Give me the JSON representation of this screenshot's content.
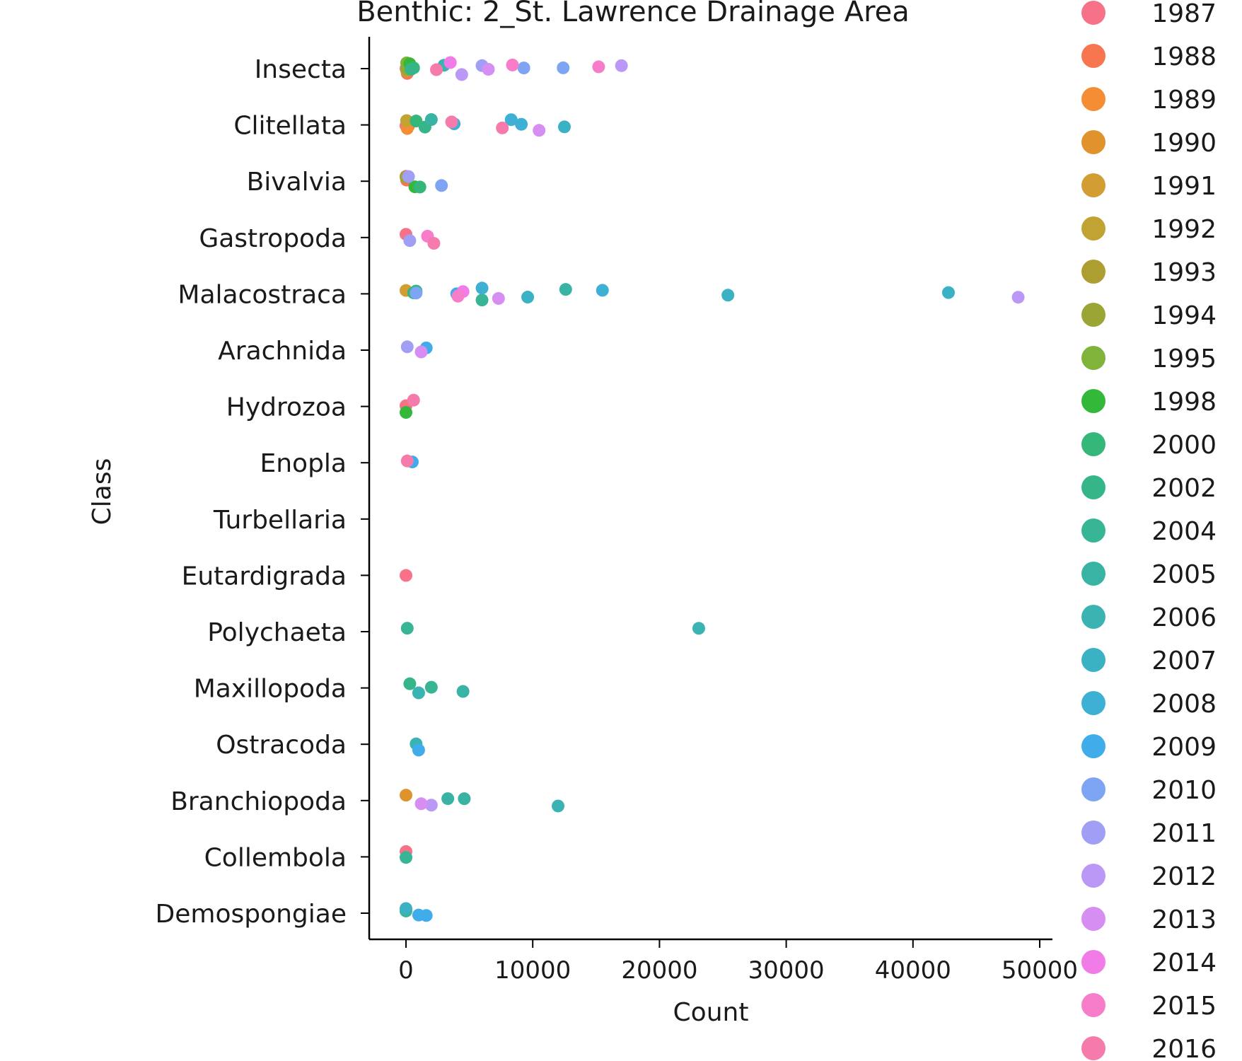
{
  "chart_data": {
    "type": "scatter",
    "title": "Benthic: 2_St. Lawrence Drainage Area",
    "xlabel": "Count",
    "ylabel": "Class",
    "xlim": [
      -2800,
      51000
    ],
    "xticks": [
      0,
      10000,
      20000,
      30000,
      40000,
      50000
    ],
    "xtick_labels": [
      "0",
      "10000",
      "20000",
      "30000",
      "40000",
      "50000"
    ],
    "categories": [
      "Insecta",
      "Clitellata",
      "Bivalvia",
      "Gastropoda",
      "Malacostraca",
      "Arachnida",
      "Hydrozoa",
      "Enopla",
      "Turbellaria",
      "Eutardigrada",
      "Polychaeta",
      "Maxillopoda",
      "Ostracoda",
      "Branchiopoda",
      "Collembola",
      "Demospongiae"
    ],
    "legend_position": "right",
    "grid": false,
    "series": [
      {
        "name": "1987",
        "color": "#f77189",
        "points": [
          [
            "Insecta",
            0
          ],
          [
            "Clitellata",
            0
          ],
          [
            "Bivalvia",
            0
          ],
          [
            "Gastropoda",
            0
          ],
          [
            "Hydrozoa",
            0
          ],
          [
            "Eutardigrada",
            0
          ],
          [
            "Collembola",
            0
          ]
        ]
      },
      {
        "name": "1988",
        "color": "#f7754f",
        "points": [
          [
            "Insecta",
            100
          ],
          [
            "Clitellata",
            200
          ],
          [
            "Bivalvia",
            50
          ]
        ]
      },
      {
        "name": "1989",
        "color": "#f48d33",
        "points": [
          [
            "Insecta",
            150
          ],
          [
            "Clitellata",
            100
          ]
        ]
      },
      {
        "name": "1990",
        "color": "#e0932d",
        "points": [
          [
            "Insecta",
            80
          ],
          [
            "Branchiopoda",
            0
          ]
        ]
      },
      {
        "name": "1991",
        "color": "#d29e33",
        "points": [
          [
            "Insecta",
            120
          ],
          [
            "Malacostraca",
            0
          ]
        ]
      },
      {
        "name": "1992",
        "color": "#c0a333",
        "points": [
          [
            "Insecta",
            60
          ],
          [
            "Clitellata",
            50
          ]
        ]
      },
      {
        "name": "1993",
        "color": "#ae9d31",
        "points": [
          [
            "Insecta",
            90
          ]
        ]
      },
      {
        "name": "1994",
        "color": "#9ba533",
        "points": [
          [
            "Insecta",
            70
          ],
          [
            "Bivalvia",
            0
          ]
        ]
      },
      {
        "name": "1995",
        "color": "#7fb33a",
        "points": [
          [
            "Insecta",
            50
          ]
        ]
      },
      {
        "name": "1998",
        "color": "#33b83a",
        "points": [
          [
            "Bivalvia",
            700
          ],
          [
            "Hydrozoa",
            0
          ],
          [
            "Insecta",
            300
          ]
        ]
      },
      {
        "name": "2000",
        "color": "#35b779",
        "points": [
          [
            "Insecta",
            600
          ],
          [
            "Bivalvia",
            1100
          ],
          [
            "Clitellata",
            800
          ],
          [
            "Malacostraca",
            600
          ]
        ]
      },
      {
        "name": "2002",
        "color": "#36b688",
        "points": [
          [
            "Insecta",
            400
          ],
          [
            "Clitellata",
            1500
          ],
          [
            "Malacostraca",
            800
          ],
          [
            "Maxillopoda",
            300
          ]
        ]
      },
      {
        "name": "2004",
        "color": "#37b595",
        "points": [
          [
            "Malacostraca",
            6000
          ],
          [
            "Maxillopoda",
            2000
          ],
          [
            "Polychaeta",
            100
          ],
          [
            "Collembola",
            0
          ],
          [
            "Demospongiae",
            0
          ]
        ]
      },
      {
        "name": "2005",
        "color": "#39b4a4",
        "points": [
          [
            "Malacostraca",
            12600
          ],
          [
            "Maxillopoda",
            4500
          ],
          [
            "Branchiopoda",
            4600
          ],
          [
            "Branchiopoda",
            3300
          ],
          [
            "Clitellata",
            2000
          ]
        ]
      },
      {
        "name": "2006",
        "color": "#3ab3b2",
        "points": [
          [
            "Branchiopoda",
            12000
          ],
          [
            "Polychaeta",
            23100
          ],
          [
            "Maxillopoda",
            1000
          ],
          [
            "Ostracoda",
            800
          ],
          [
            "Insecta",
            3000
          ]
        ]
      },
      {
        "name": "2007",
        "color": "#3bb2c3",
        "points": [
          [
            "Malacostraca",
            25400
          ],
          [
            "Malacostraca",
            42800
          ],
          [
            "Malacostraca",
            9600
          ],
          [
            "Clitellata",
            12500
          ],
          [
            "Demospongiae",
            0
          ]
        ]
      },
      {
        "name": "2008",
        "color": "#3db0d4",
        "points": [
          [
            "Malacostraca",
            15500
          ],
          [
            "Clitellata",
            9100
          ],
          [
            "Clitellata",
            8300
          ],
          [
            "Malacostraca",
            6000
          ],
          [
            "Clitellata",
            3800
          ]
        ]
      },
      {
        "name": "2009",
        "color": "#41acea",
        "points": [
          [
            "Demospongiae",
            1600
          ],
          [
            "Demospongiae",
            1000
          ],
          [
            "Ostracoda",
            1000
          ],
          [
            "Arachnida",
            1600
          ],
          [
            "Enopla",
            500
          ],
          [
            "Malacostraca",
            4000
          ]
        ]
      },
      {
        "name": "2010",
        "color": "#7ea4f4",
        "points": [
          [
            "Insecta",
            12400
          ],
          [
            "Bivalvia",
            2800
          ],
          [
            "Insecta",
            9300
          ],
          [
            "Malacostraca",
            800
          ]
        ]
      },
      {
        "name": "2011",
        "color": "#a19ff5",
        "points": [
          [
            "Insecta",
            6000
          ],
          [
            "Arachnida",
            100
          ],
          [
            "Gastropoda",
            300
          ],
          [
            "Bivalvia",
            200
          ]
        ]
      },
      {
        "name": "2012",
        "color": "#bb98f5",
        "points": [
          [
            "Insecta",
            17000
          ],
          [
            "Malacostraca",
            48300
          ],
          [
            "Branchiopoda",
            2000
          ],
          [
            "Insecta",
            4400
          ]
        ]
      },
      {
        "name": "2013",
        "color": "#d68ef2",
        "points": [
          [
            "Clitellata",
            10500
          ],
          [
            "Malacostraca",
            7300
          ],
          [
            "Branchiopoda",
            1200
          ],
          [
            "Arachnida",
            1200
          ],
          [
            "Insecta",
            6500
          ]
        ]
      },
      {
        "name": "2014",
        "color": "#f17ce8",
        "points": [
          [
            "Insecta",
            3500
          ],
          [
            "Malacostraca",
            4500
          ]
        ]
      },
      {
        "name": "2015",
        "color": "#f77dcb",
        "points": [
          [
            "Insecta",
            15200
          ],
          [
            "Insecta",
            8400
          ],
          [
            "Gastropoda",
            1700
          ],
          [
            "Malacostraca",
            4100
          ]
        ]
      },
      {
        "name": "2016",
        "color": "#f67bad",
        "points": [
          [
            "Clitellata",
            7600
          ],
          [
            "Clitellata",
            3600
          ],
          [
            "Gastropoda",
            2200
          ],
          [
            "Hydrozoa",
            600
          ],
          [
            "Enopla",
            100
          ],
          [
            "Insecta",
            2400
          ]
        ]
      }
    ]
  }
}
